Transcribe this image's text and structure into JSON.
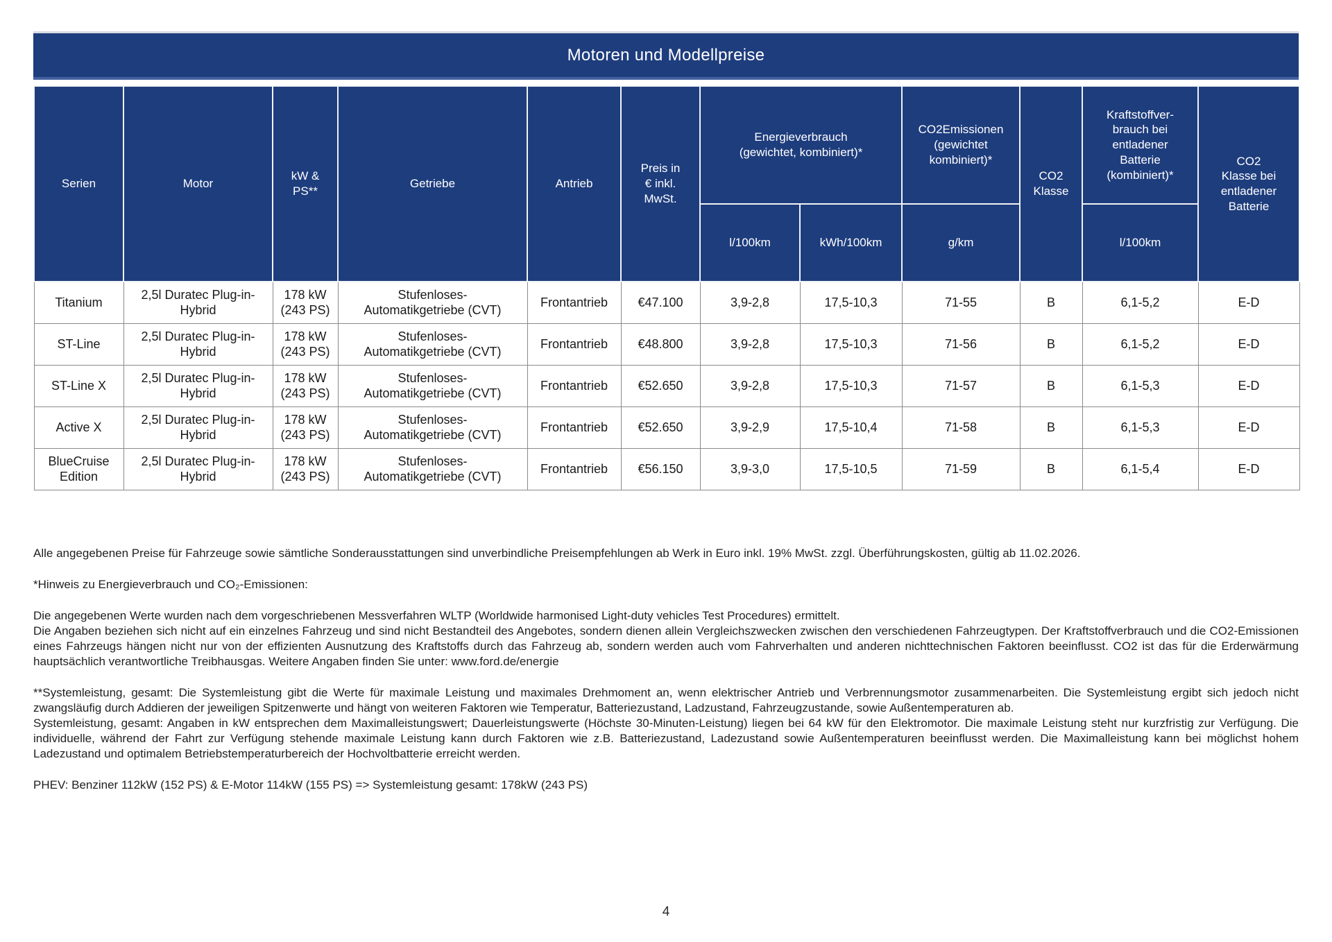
{
  "banner": {
    "title": "Motoren und Modellpreise"
  },
  "table": {
    "columns": {
      "serien": "Serien",
      "motor": "Motor",
      "kw_ps": "kW &\nPS**",
      "getriebe": "Getriebe",
      "antrieb": "Antrieb",
      "preis": "Preis in\n€ inkl.\nMwSt.",
      "energieverbrauch": "Energieverbrauch\n(gewichtet, kombiniert)*",
      "co2emissionen": "CO2Emissionen\n(gewichtet\nkombiniert)*",
      "co2_klasse": "CO2\nKlasse",
      "kraftstoffverbrauch_entladen": "Kraftstoffver-\nbrauch bei\nentladener\nBatterie\n(kombiniert)*",
      "co2_klasse_entladen": "CO2\nKlasse bei\nentladener\nBatterie"
    },
    "subcolumns": {
      "l_100km": "l/100km",
      "kwh_100km": "kWh/100km",
      "g_km": "g/km",
      "l_100km_entladen": "l/100km"
    },
    "rows": [
      [
        "Titanium",
        "2,5l Duratec Plug-in-\nHybrid",
        "178 kW\n(243 PS)",
        "Stufenloses-\nAutomatikgetriebe (CVT)",
        "Frontantrieb",
        "€47.100",
        "3,9-2,8",
        "17,5-10,3",
        "71-55",
        "B",
        "6,1-5,2",
        "E-D"
      ],
      [
        "ST-Line",
        "2,5l Duratec Plug-in-\nHybrid",
        "178 kW\n(243 PS)",
        "Stufenloses-\nAutomatikgetriebe (CVT)",
        "Frontantrieb",
        "€48.800",
        "3,9-2,8",
        "17,5-10,3",
        "71-56",
        "B",
        "6,1-5,2",
        "E-D"
      ],
      [
        "ST-Line X",
        "2,5l Duratec Plug-in-\nHybrid",
        "178 kW\n(243 PS)",
        "Stufenloses-\nAutomatikgetriebe (CVT)",
        "Frontantrieb",
        "€52.650",
        "3,9-2,8",
        "17,5-10,3",
        "71-57",
        "B",
        "6,1-5,3",
        "E-D"
      ],
      [
        "Active X",
        "2,5l Duratec Plug-in-\nHybrid",
        "178 kW\n(243 PS)",
        "Stufenloses-\nAutomatikgetriebe (CVT)",
        "Frontantrieb",
        "€52.650",
        "3,9-2,9",
        "17,5-10,4",
        "71-58",
        "B",
        "6,1-5,3",
        "E-D"
      ],
      [
        "BlueCruise\nEdition",
        "2,5l Duratec Plug-in-\nHybrid",
        "178 kW\n(243 PS)",
        "Stufenloses-\nAutomatikgetriebe (CVT)",
        "Frontantrieb",
        "€56.150",
        "3,9-3,0",
        "17,5-10,5",
        "71-59",
        "B",
        "6,1-5,4",
        "E-D"
      ]
    ]
  },
  "footnotes": [
    "Alle angegebenen Preise für Fahrzeuge sowie sämtliche Sonderausstattungen sind unverbindliche Preisempfehlungen ab Werk in Euro inkl. 19% MwSt. zzgl. Überführungskosten, gültig ab 11.02.2026.",
    "*Hinweis zu Energieverbrauch und CO₂-Emissionen:",
    "Die angegebenen Werte wurden nach dem vorgeschriebenen Messverfahren WLTP (Worldwide harmonised Light-duty vehicles Test Procedures) ermittelt.\nDie Angaben beziehen sich nicht auf ein einzelnes Fahrzeug und sind nicht Bestandteil des Angebotes, sondern dienen allein Vergleichszwecken zwischen den verschiedenen Fahrzeugtypen. Der Kraftstoffverbrauch und die CO2-Emissionen eines Fahrzeugs hängen nicht nur von der effizienten Ausnutzung des Kraftstoffs durch das Fahrzeug ab, sondern werden auch vom Fahrverhalten und anderen nichttechnischen Faktoren beeinflusst. CO2 ist das für die Erderwärmung hauptsächlich verantwortliche Treibhausgas. Weitere Angaben finden Sie unter: www.ford.de/energie",
    "**Systemleistung, gesamt:  Die Systemleistung gibt die Werte für maximale Leistung und maximales Drehmoment an, wenn elektrischer Antrieb und Verbrennungsmotor zusammenarbeiten. Die Systemleistung ergibt sich jedoch nicht zwangsläufig durch Addieren der jeweiligen Spitzenwerte und hängt von weiteren Faktoren wie Temperatur, Batteriezustand, Ladzustand, Fahrzeugzustande, sowie Außentemperaturen ab.\nSystemleistung, gesamt: Angaben in kW entsprechen dem Maximalleistungswert; Dauerleistungswerte (Höchste 30-Minuten-Leistung) liegen bei 64 kW für den Elektromotor. Die maximale Leistung steht nur kurzfristig zur Verfügung. Die individuelle, während der Fahrt zur Verfügung stehende maximale Leistung kann durch Faktoren wie z.B. Batteriezustand, Ladezustand sowie Außentemperaturen beeinflusst werden. Die Maximalleistung kann bei möglichst hohem Ladezustand und optimalem Betriebstemperaturbereich der Hochvoltbatterie erreicht werden.",
    "PHEV: Benziner 112kW (152 PS) & E-Motor 114kW (155 PS) => Systemleistung gesamt: 178kW (243 PS)"
  ],
  "page": {
    "number": "4"
  }
}
